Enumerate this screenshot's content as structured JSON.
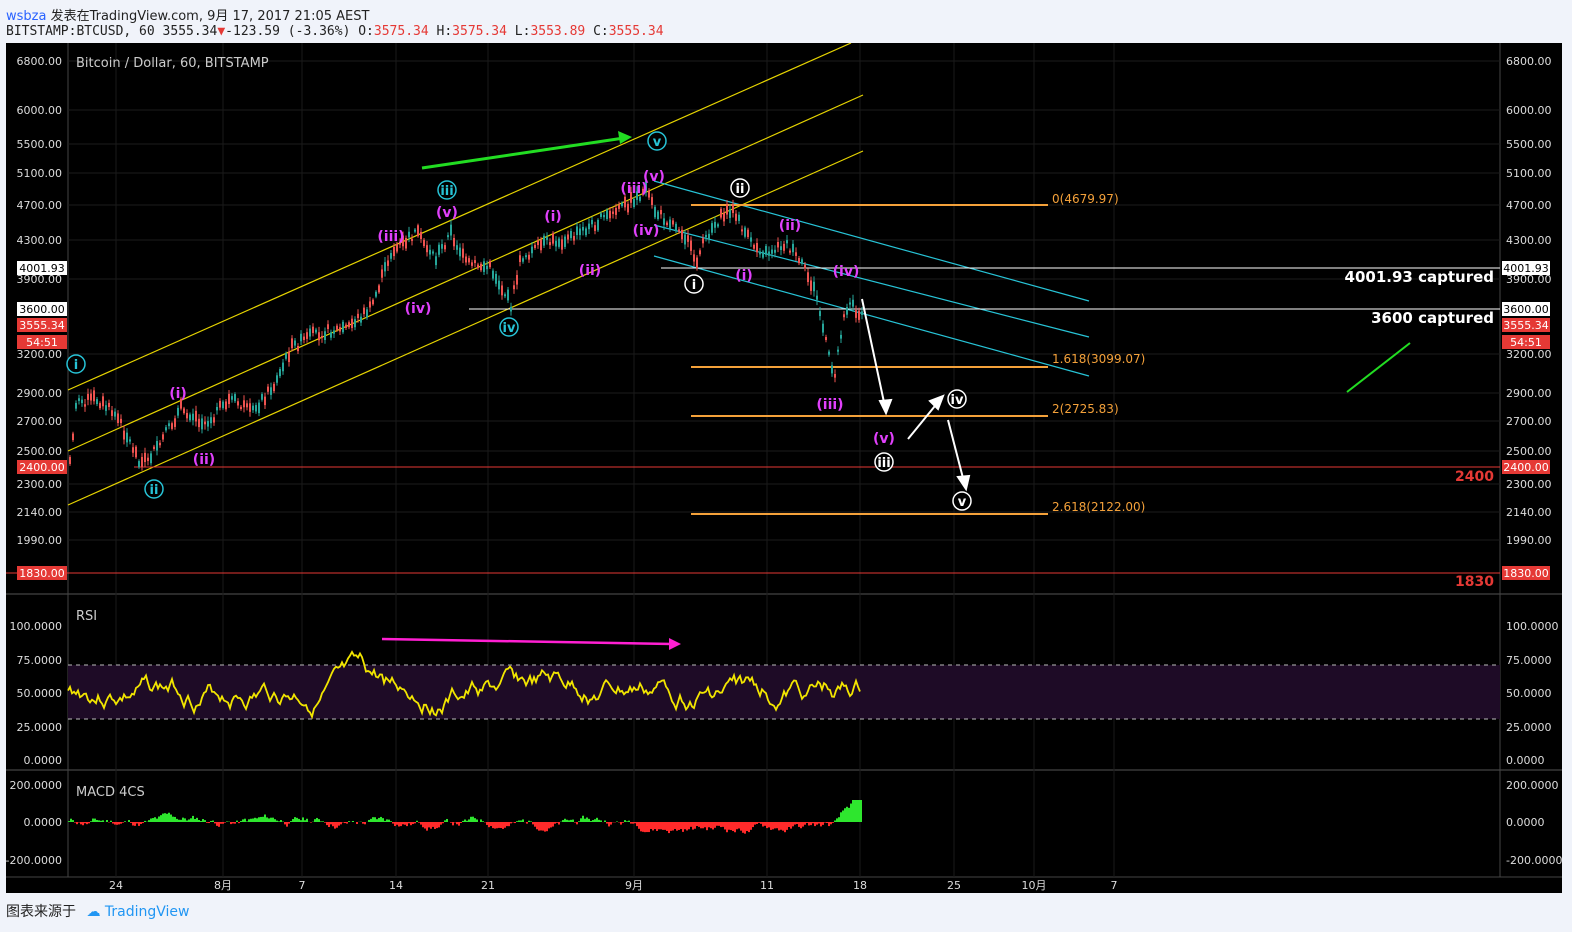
{
  "header": {
    "user": "wsbza",
    "published": "发表在TradingView.com, 9月 17, 2017 21:05 AEST",
    "symbol": "BITSTAMP:BTCUSD, 60",
    "last": "3555.34",
    "change_arrow": "▼",
    "change": "-123.59 (-3.36%)",
    "o_label": "O:",
    "o": "3575.34",
    "h_label": "H:",
    "h": "3575.34",
    "l_label": "L:",
    "l": "3553.89",
    "c_label": "C:",
    "c": "3555.34"
  },
  "chart": {
    "title": "Bitcoin / Dollar, 60, BITSTAMP",
    "price_ticks": [
      "6800.00",
      "6000.00",
      "5500.00",
      "5100.00",
      "4700.00",
      "4300.00",
      "3900.00",
      "3200.00",
      "2900.00",
      "2700.00",
      "2500.00",
      "2300.00",
      "2140.00",
      "1990.00"
    ],
    "price_tags": [
      {
        "text": "4001.93",
        "color": "#ffffff",
        "fg": "#000000"
      },
      {
        "text": "3600.00",
        "color": "#ffffff",
        "fg": "#000000"
      },
      {
        "text": "3555.34",
        "color": "#e53935",
        "fg": "#ffffff"
      },
      {
        "text": "54:51",
        "color": "#e53935",
        "fg": "#ffffff"
      },
      {
        "text": "2400.00",
        "color": "#e53935",
        "fg": "#ffffff"
      },
      {
        "text": "1830.00",
        "color": "#e53935",
        "fg": "#ffffff"
      }
    ],
    "time_ticks": [
      "24",
      "8月",
      "7",
      "14",
      "21",
      "9月",
      "11",
      "18",
      "25",
      "10月",
      "7"
    ],
    "annotations": {
      "captured_4001": "4001.93 captured",
      "captured_3600": "3600 captured",
      "level_2400": "2400",
      "level_1830": "1830"
    },
    "fib_labels": [
      "0(4679.97)",
      "1.618(3099.07)",
      "2(2725.83)",
      "2.618(2122.00)"
    ],
    "wave_labels": {
      "primary": [
        "i",
        "ii",
        "iii",
        "iv",
        "v"
      ],
      "minor": [
        "(i)",
        "(ii)",
        "(iii)",
        "(iv)",
        "(v)"
      ]
    }
  },
  "rsi": {
    "title": "RSI",
    "ticks": [
      "100.0000",
      "75.0000",
      "50.0000",
      "25.0000",
      "0.0000"
    ]
  },
  "macd": {
    "title": "MACD 4CS",
    "ticks": [
      "200.0000",
      "0.0000",
      "-200.0000"
    ]
  },
  "colors": {
    "background": "#000000",
    "channel": "#e6d400",
    "cyan_channel": "#27c3d6",
    "fib": "#f4a13a",
    "level_red": "#e53935",
    "wave_magenta": "#e040fb",
    "wave_cyan": "#27c3d6",
    "rsi_line": "#f2e600",
    "arrow_green": "#22dd22",
    "arrow_magenta": "#ff1fd2"
  },
  "footer": {
    "source": "图表来源于",
    "brand": "TradingView"
  }
}
